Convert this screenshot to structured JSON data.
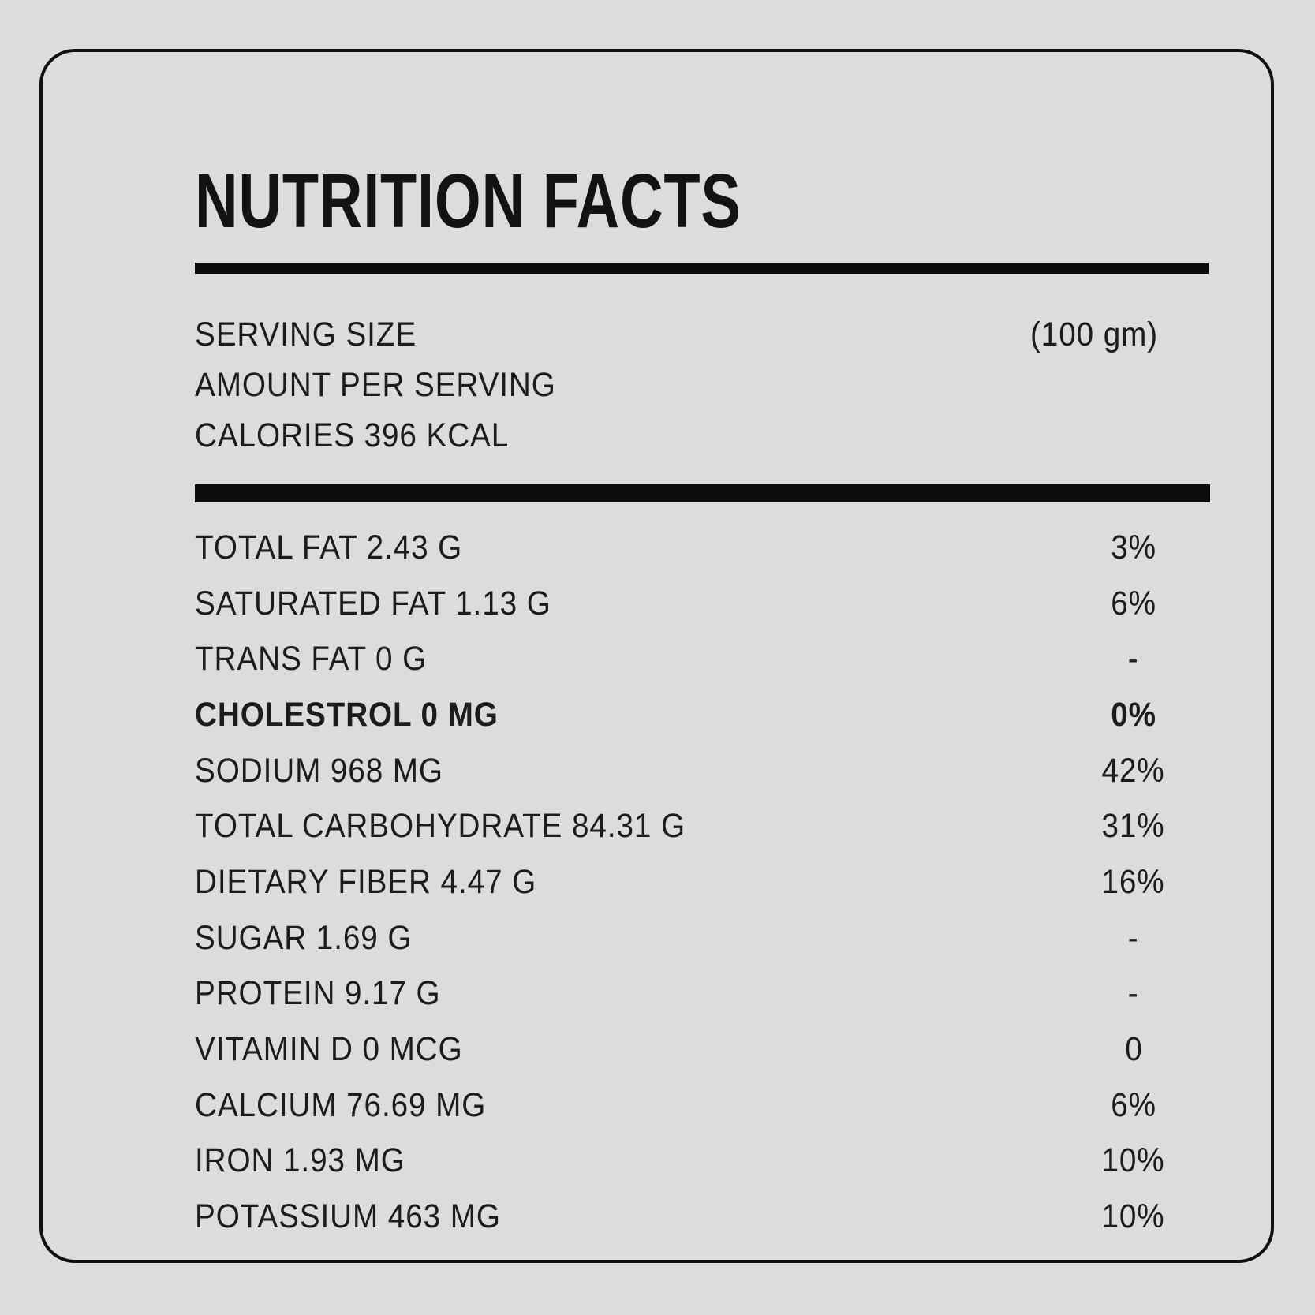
{
  "page": {
    "background_color": "#dcdcdc",
    "ink_color": "#101010"
  },
  "label": {
    "title": "NUTRITION FACTS",
    "serving_rows": [
      {
        "label": "SERVING SIZE",
        "value": "(100 gm)"
      },
      {
        "label": "AMOUNT PER SERVING",
        "value": ""
      },
      {
        "label": "CALORIES 396 KCAL",
        "value": ""
      }
    ],
    "nutrient_rows": [
      {
        "label": "TOTAL FAT 2.43 G",
        "daily_value": "3%",
        "bold": false
      },
      {
        "label": "SATURATED FAT 1.13 G",
        "daily_value": "6%",
        "bold": false
      },
      {
        "label": "TRANS FAT 0 G",
        "daily_value": "-",
        "bold": false
      },
      {
        "label": "CHOLESTROL 0 MG",
        "daily_value": "0%",
        "bold": true
      },
      {
        "label": "SODIUM 968 MG",
        "daily_value": "42%",
        "bold": false
      },
      {
        "label": "TOTAL CARBOHYDRATE 84.31 G",
        "daily_value": "31%",
        "bold": false
      },
      {
        "label": "DIETARY FIBER 4.47 G",
        "daily_value": "16%",
        "bold": false
      },
      {
        "label": "SUGAR 1.69 G",
        "daily_value": "-",
        "bold": false
      },
      {
        "label": "PROTEIN 9.17 G",
        "daily_value": "-",
        "bold": false
      },
      {
        "label": "VITAMIN D 0 MCG",
        "daily_value": "0",
        "bold": false
      },
      {
        "label": "CALCIUM 76.69 MG",
        "daily_value": "6%",
        "bold": false
      },
      {
        "label": "IRON 1.93 MG",
        "daily_value": "10%",
        "bold": false
      },
      {
        "label": "POTASSIUM 463 MG",
        "daily_value": "10%",
        "bold": false
      }
    ]
  }
}
